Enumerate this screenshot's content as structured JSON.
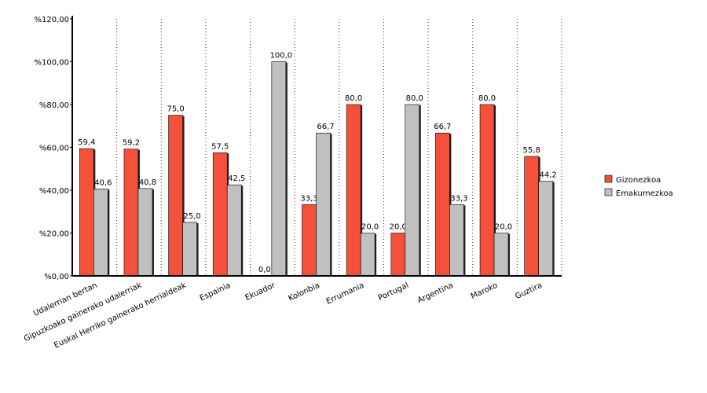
{
  "chart_data": {
    "type": "bar",
    "categories": [
      "Udalerrian bertan",
      "Gipuzkoako gainerako udalerriak",
      "Euskal Herriko gainerako herrialdeak",
      "Espainia",
      "Ekuador",
      "Kolonbia",
      "Errumania",
      "Portugal",
      "Argentina",
      "Maroko",
      "Guztira"
    ],
    "series": [
      {
        "name": "Gizonezkoa",
        "color": "#f4503a",
        "values": [
          59.4,
          59.2,
          75.0,
          57.5,
          0.0,
          33.3,
          80.0,
          20.0,
          66.7,
          80.0,
          55.8
        ],
        "value_labels": [
          "59,4",
          "59,2",
          "75,0",
          "57,5",
          "0,0",
          "33,3",
          "80,0",
          "20,0",
          "66,7",
          "80,0",
          "55,8"
        ]
      },
      {
        "name": "Emakumezkoa",
        "color": "#c0c0c0",
        "values": [
          40.6,
          40.8,
          25.0,
          42.5,
          100.0,
          66.7,
          20.0,
          80.0,
          33.3,
          20.0,
          44.2
        ],
        "value_labels": [
          "40,6",
          "40,8",
          "25,0",
          "42,5",
          "100,0",
          "66,7",
          "20,0",
          "80,0",
          "33,3",
          "20,0",
          "44,2"
        ]
      }
    ],
    "ylim": [
      0,
      120
    ],
    "yticks": [
      {
        "value": 0,
        "label": "%0,00"
      },
      {
        "value": 20,
        "label": "%20,00"
      },
      {
        "value": 40,
        "label": "%40,00"
      },
      {
        "value": 60,
        "label": "%60,00"
      },
      {
        "value": 80,
        "label": "%80,00"
      },
      {
        "value": 100,
        "label": "%100,00"
      },
      {
        "value": 120,
        "label": "%120,00"
      }
    ],
    "legend": "right"
  }
}
